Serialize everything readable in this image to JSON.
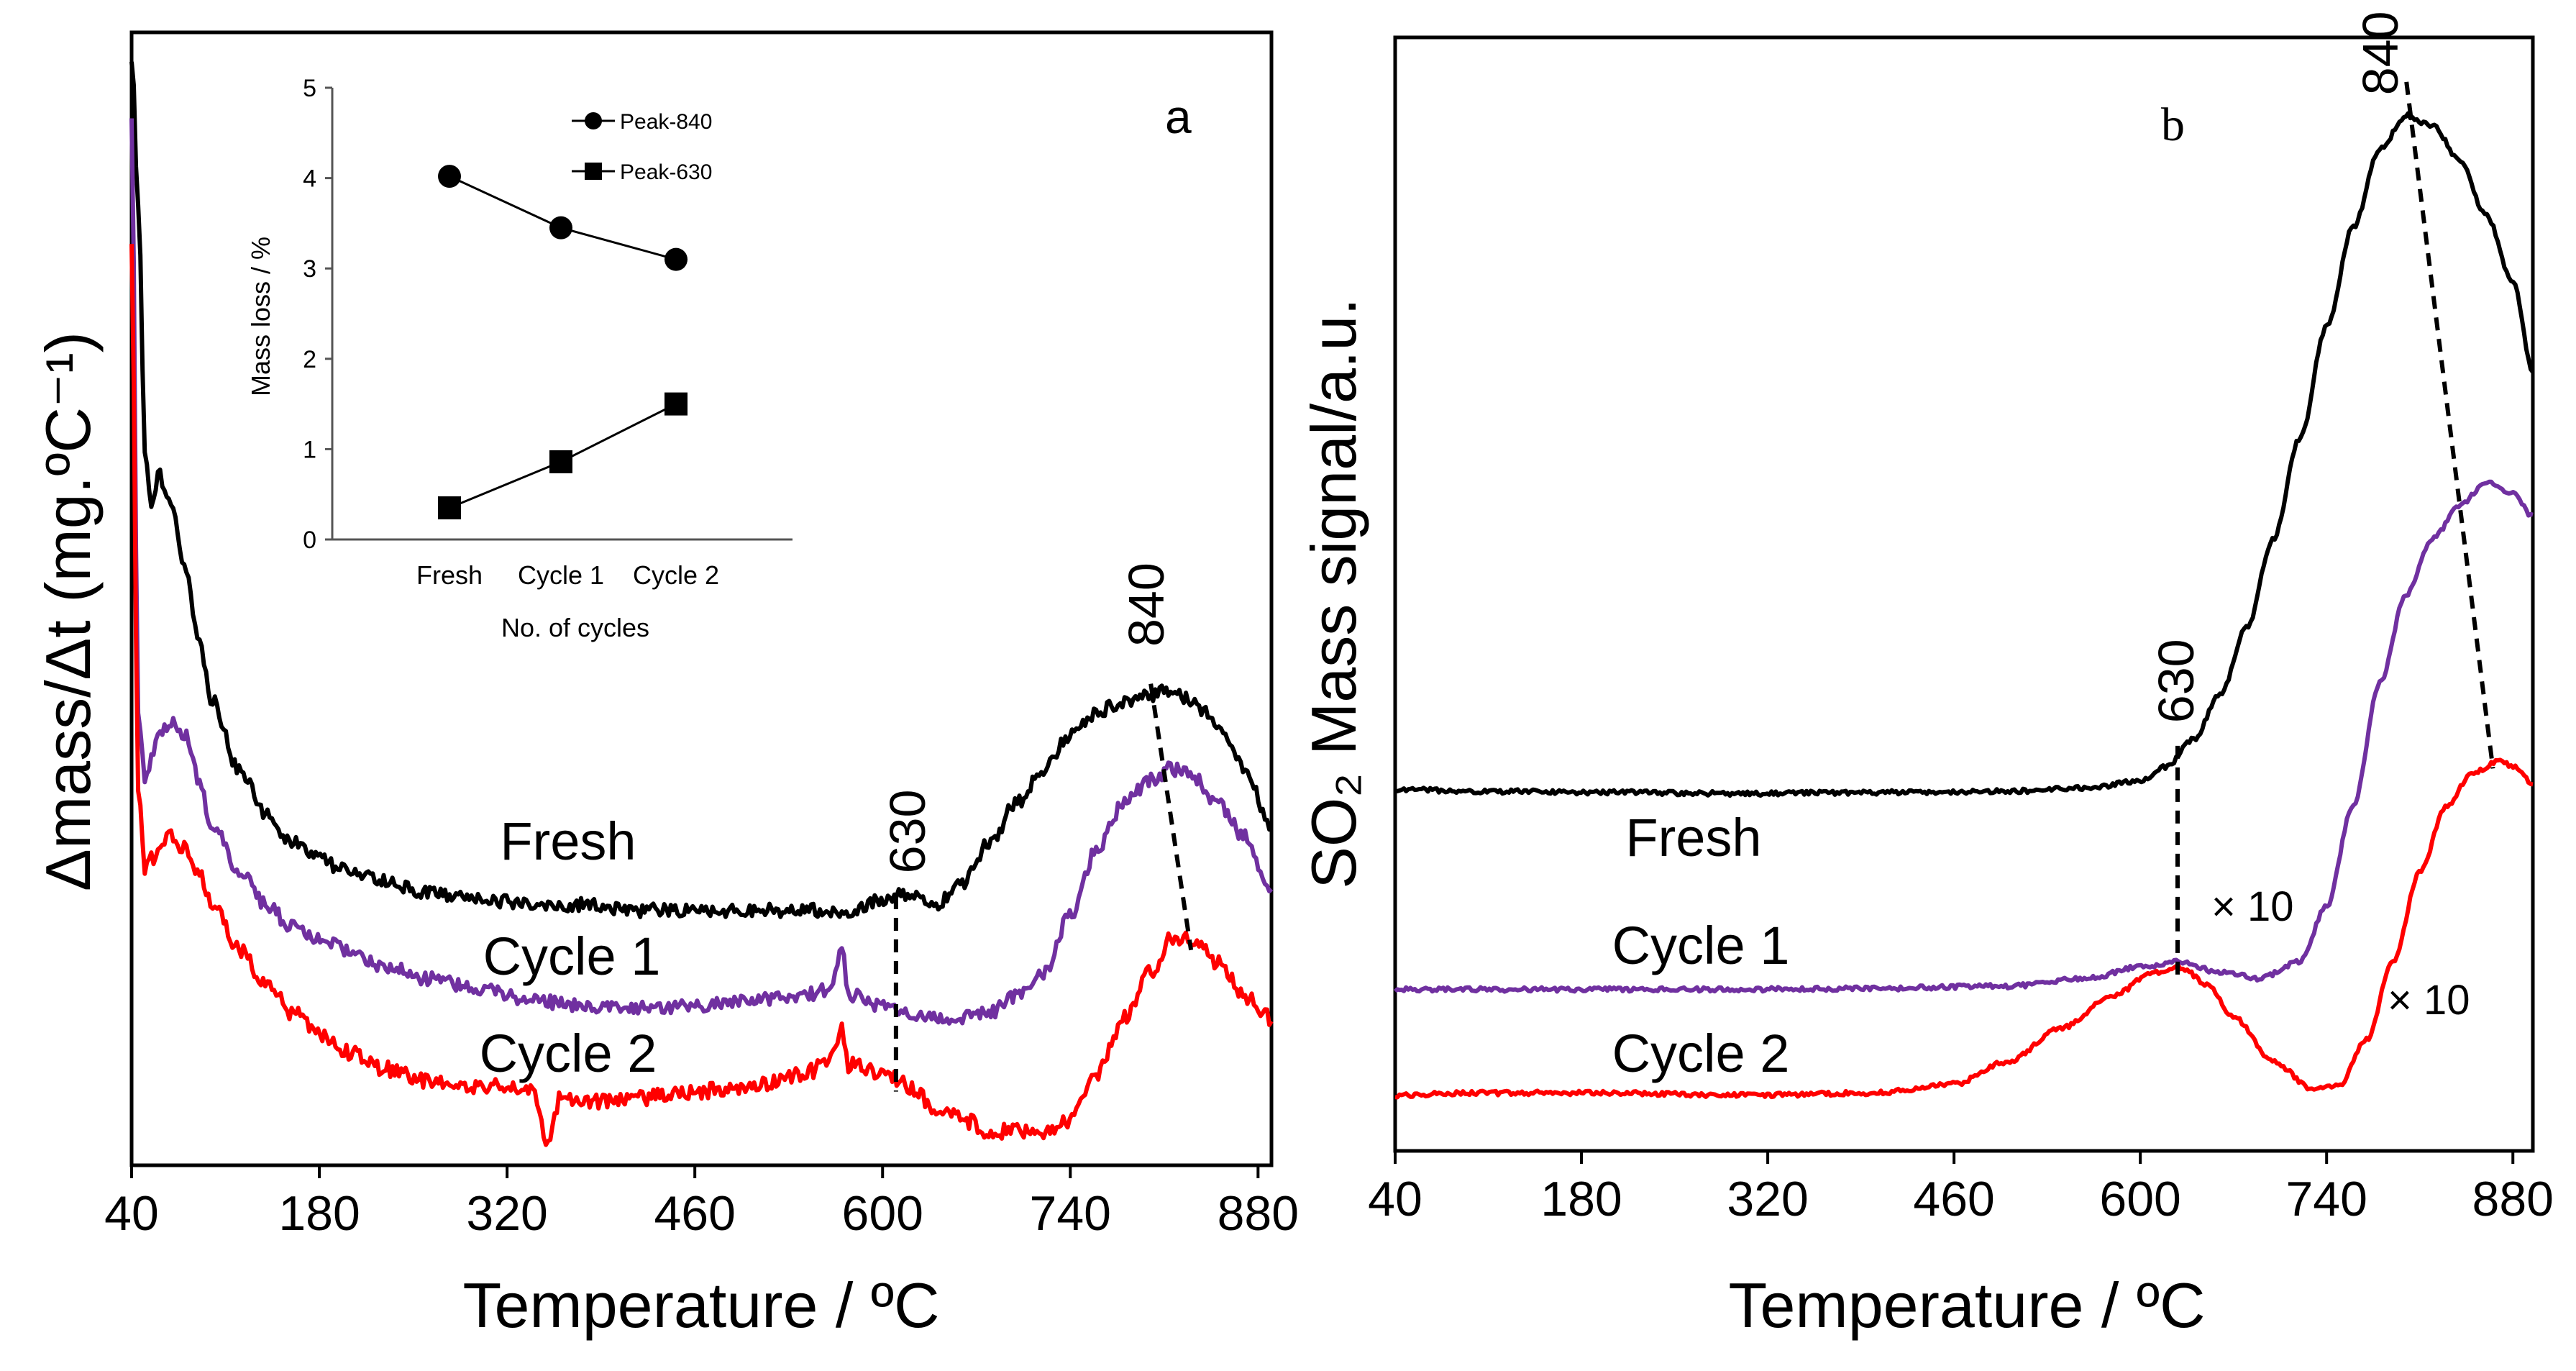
{
  "figure": {
    "panels": [
      "a",
      "b"
    ],
    "multiplier_label": "× 10"
  },
  "chart_data": [
    {
      "id": "a",
      "type": "line",
      "panel_label": "a",
      "xlabel": "Temperature / ºC",
      "ylabel": "Δmass/Δt (mg.ºC⁻¹)",
      "xlim": [
        40,
        890
      ],
      "ylim": [
        0,
        1
      ],
      "xticks": [
        40,
        180,
        320,
        460,
        600,
        740,
        880
      ],
      "yticks": [],
      "peak_labels": [
        {
          "text": "630",
          "x": 610
        },
        {
          "text": "840",
          "x": 815
        }
      ],
      "series": [
        {
          "name": "Fresh",
          "color": "#000000",
          "x": [
            40,
            45,
            50,
            55,
            60,
            70,
            80,
            90,
            100,
            120,
            140,
            160,
            180,
            200,
            230,
            260,
            300,
            340,
            380,
            420,
            460,
            500,
            540,
            580,
            600,
            620,
            640,
            660,
            680,
            700,
            720,
            740,
            760,
            780,
            800,
            815,
            830,
            850,
            870,
            890
          ],
          "y": [
            0.98,
            0.85,
            0.63,
            0.58,
            0.61,
            0.58,
            0.53,
            0.46,
            0.41,
            0.35,
            0.31,
            0.285,
            0.27,
            0.26,
            0.25,
            0.24,
            0.235,
            0.23,
            0.23,
            0.225,
            0.225,
            0.225,
            0.225,
            0.225,
            0.235,
            0.24,
            0.23,
            0.25,
            0.285,
            0.32,
            0.35,
            0.38,
            0.4,
            0.41,
            0.415,
            0.42,
            0.41,
            0.39,
            0.35,
            0.3
          ],
          "noise": 0.006
        },
        {
          "name": "Cycle 1",
          "color": "#7030A0",
          "x": [
            40,
            45,
            50,
            55,
            60,
            70,
            80,
            90,
            100,
            120,
            140,
            160,
            180,
            200,
            230,
            260,
            300,
            340,
            380,
            420,
            460,
            500,
            540,
            560,
            570,
            575,
            580,
            600,
            620,
            640,
            660,
            680,
            700,
            720,
            740,
            760,
            780,
            800,
            815,
            830,
            850,
            870,
            890
          ],
          "y": [
            0.93,
            0.4,
            0.34,
            0.36,
            0.38,
            0.39,
            0.38,
            0.34,
            0.3,
            0.26,
            0.23,
            0.21,
            0.2,
            0.19,
            0.175,
            0.165,
            0.155,
            0.145,
            0.14,
            0.14,
            0.14,
            0.145,
            0.15,
            0.155,
            0.19,
            0.15,
            0.15,
            0.14,
            0.135,
            0.13,
            0.13,
            0.135,
            0.15,
            0.17,
            0.22,
            0.28,
            0.32,
            0.34,
            0.35,
            0.345,
            0.32,
            0.29,
            0.24
          ],
          "noise": 0.006
        },
        {
          "name": "Cycle 2",
          "color": "#ff0000",
          "x": [
            40,
            45,
            50,
            55,
            60,
            70,
            80,
            90,
            100,
            120,
            140,
            160,
            180,
            200,
            230,
            260,
            300,
            340,
            350,
            360,
            380,
            420,
            460,
            500,
            540,
            560,
            570,
            575,
            580,
            600,
            620,
            640,
            660,
            680,
            700,
            720,
            740,
            760,
            780,
            800,
            815,
            830,
            850,
            870,
            890
          ],
          "y": [
            0.82,
            0.33,
            0.26,
            0.27,
            0.28,
            0.29,
            0.28,
            0.26,
            0.23,
            0.19,
            0.16,
            0.135,
            0.115,
            0.1,
            0.085,
            0.075,
            0.07,
            0.065,
            0.02,
            0.06,
            0.055,
            0.06,
            0.065,
            0.07,
            0.08,
            0.09,
            0.12,
            0.085,
            0.09,
            0.08,
            0.07,
            0.05,
            0.04,
            0.03,
            0.03,
            0.03,
            0.04,
            0.08,
            0.13,
            0.17,
            0.2,
            0.2,
            0.18,
            0.15,
            0.13
          ],
          "noise": 0.007
        }
      ],
      "inset": {
        "type": "line",
        "xlabel": "No. of cycles",
        "ylabel": "Mass loss / %",
        "categories": [
          "Fresh",
          "Cycle 1",
          "Cycle 2"
        ],
        "ylim": [
          0,
          5
        ],
        "yticks": [
          0,
          1,
          2,
          3,
          4,
          5
        ],
        "series": [
          {
            "name": "Peak-840",
            "marker": "circle",
            "values": [
              4.02,
              3.45,
              3.1
            ]
          },
          {
            "name": "Peak-630",
            "marker": "square",
            "values": [
              0.35,
              0.86,
              1.5
            ]
          }
        ]
      }
    },
    {
      "id": "b",
      "type": "line",
      "panel_label": "b",
      "xlabel": "Temperature / ºC",
      "ylabel": "SO₂ Mass signal/a.u.",
      "xlim": [
        40,
        895
      ],
      "ylim": [
        0,
        1
      ],
      "xticks": [
        40,
        180,
        320,
        460,
        600,
        740,
        880
      ],
      "yticks": [],
      "peak_labels": [
        {
          "text": "630",
          "x": 628
        },
        {
          "text": "840",
          "x": 803
        }
      ],
      "annotations": [
        {
          "text": "× 10",
          "series": "Cycle 1"
        },
        {
          "text": "× 10",
          "series": "Cycle 2"
        }
      ],
      "series": [
        {
          "name": "Fresh",
          "color": "#000000",
          "x": [
            40,
            100,
            200,
            300,
            400,
            500,
            560,
            600,
            620,
            640,
            660,
            680,
            700,
            720,
            740,
            760,
            780,
            800,
            820,
            840,
            860,
            880,
            895
          ],
          "y": [
            0.325,
            0.323,
            0.322,
            0.321,
            0.322,
            0.323,
            0.326,
            0.332,
            0.345,
            0.37,
            0.41,
            0.47,
            0.55,
            0.64,
            0.74,
            0.83,
            0.9,
            0.93,
            0.92,
            0.89,
            0.84,
            0.78,
            0.7
          ],
          "noise": 0.002
        },
        {
          "name": "Cycle 1",
          "color": "#7030A0",
          "x": [
            40,
            100,
            200,
            300,
            400,
            500,
            560,
            600,
            630,
            660,
            690,
            720,
            740,
            760,
            780,
            800,
            820,
            840,
            860,
            880,
            895
          ],
          "y": [
            0.145,
            0.145,
            0.145,
            0.145,
            0.146,
            0.148,
            0.155,
            0.165,
            0.17,
            0.16,
            0.155,
            0.17,
            0.22,
            0.31,
            0.42,
            0.5,
            0.55,
            0.58,
            0.6,
            0.59,
            0.57
          ],
          "noise": 0.002
        },
        {
          "name": "Cycle 2",
          "color": "#ff0000",
          "x": [
            40,
            100,
            200,
            300,
            400,
            460,
            500,
            540,
            580,
            610,
            630,
            650,
            670,
            700,
            730,
            750,
            770,
            790,
            810,
            830,
            850,
            870,
            880,
            895
          ],
          "y": [
            0.05,
            0.052,
            0.052,
            0.05,
            0.052,
            0.06,
            0.08,
            0.11,
            0.14,
            0.16,
            0.165,
            0.15,
            0.12,
            0.08,
            0.055,
            0.06,
            0.1,
            0.17,
            0.25,
            0.31,
            0.34,
            0.35,
            0.345,
            0.33
          ],
          "noise": 0.002
        }
      ]
    }
  ]
}
